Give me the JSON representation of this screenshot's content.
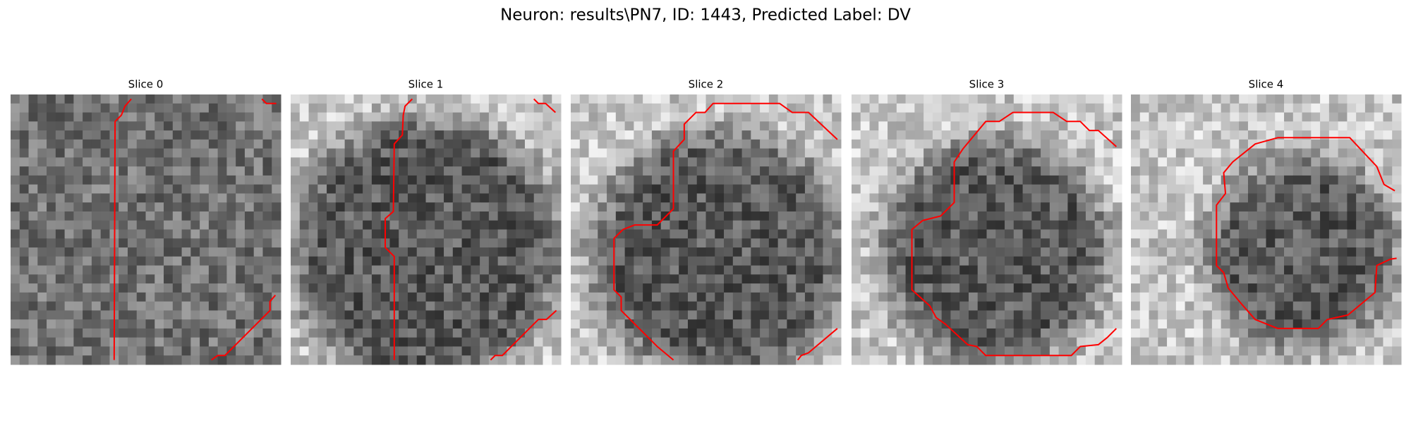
{
  "title": "Neuron: results\\PN7, ID: 1443, Predicted Label: DV",
  "panels": [
    {
      "title": "Slice 0"
    },
    {
      "title": "Slice 1"
    },
    {
      "title": "Slice 2"
    },
    {
      "title": "Slice 3"
    },
    {
      "title": "Slice 4"
    }
  ]
}
